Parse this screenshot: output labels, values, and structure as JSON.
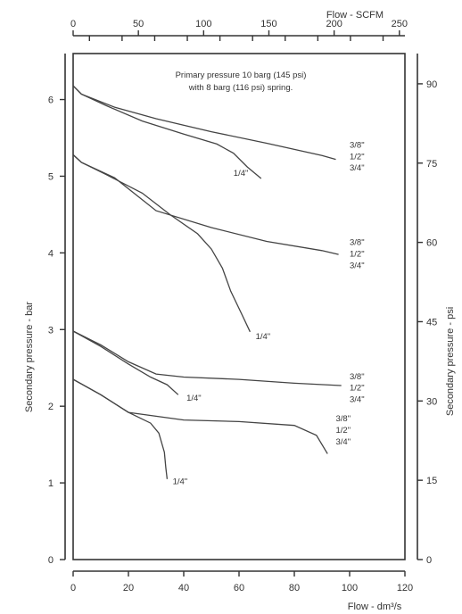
{
  "chart_data": {
    "type": "line",
    "title_lines": [
      "Primary pressure 10 barg (145 psi)",
      "with 8 barg (116 psi) spring."
    ],
    "xlabel": "Flow - dm³/s",
    "xlabel_top": "Flow - SCFM",
    "ylabel": "Secondary pressure - bar",
    "ylabel_right": "Secondary pressure - psi",
    "xlim": [
      0,
      120
    ],
    "ylim": [
      0,
      6.6
    ],
    "x_ticks": [
      0,
      20,
      40,
      60,
      80,
      100,
      120
    ],
    "y_ticks": [
      0,
      1,
      2,
      3,
      4,
      5,
      6
    ],
    "x_top_ticks": [
      0,
      50,
      100,
      150,
      200,
      250
    ],
    "x_top_minor_step": 12.5,
    "y_right_ticks": [
      0,
      15,
      30,
      45,
      60,
      75,
      90
    ],
    "grid": false,
    "series": [
      {
        "group": 1,
        "points": [
          [
            0,
            6.18
          ],
          [
            3,
            6.07
          ],
          [
            15,
            5.9
          ],
          [
            30,
            5.75
          ],
          [
            50,
            5.58
          ],
          [
            70,
            5.43
          ],
          [
            90,
            5.27
          ],
          [
            95,
            5.22
          ]
        ]
      },
      {
        "group": 1,
        "label": "1/4\"",
        "label_at": [
          58,
          5.05
        ],
        "points": [
          [
            0,
            6.18
          ],
          [
            3,
            6.07
          ],
          [
            12,
            5.92
          ],
          [
            25,
            5.72
          ],
          [
            40,
            5.55
          ],
          [
            52,
            5.42
          ],
          [
            58,
            5.3
          ],
          [
            63,
            5.12
          ],
          [
            68,
            4.97
          ]
        ]
      },
      {
        "group": 1,
        "label": "3/8\"",
        "label_at": [
          100,
          5.42
        ],
        "points": []
      },
      {
        "group": 1,
        "label": "1/2\"",
        "label_at": [
          100,
          5.27
        ],
        "points": []
      },
      {
        "group": 1,
        "label": "3/4\"",
        "label_at": [
          100,
          5.12
        ],
        "points": []
      },
      {
        "group": 2,
        "points": [
          [
            0,
            5.28
          ],
          [
            3,
            5.18
          ],
          [
            15,
            4.98
          ],
          [
            30,
            4.55
          ],
          [
            50,
            4.33
          ],
          [
            70,
            4.15
          ],
          [
            90,
            4.03
          ],
          [
            96,
            3.98
          ]
        ]
      },
      {
        "group": 2,
        "label": "1/4\"",
        "label_at": [
          66,
          2.92
        ],
        "points": [
          [
            0,
            5.28
          ],
          [
            3,
            5.18
          ],
          [
            12,
            5.02
          ],
          [
            25,
            4.78
          ],
          [
            35,
            4.5
          ],
          [
            45,
            4.25
          ],
          [
            50,
            4.05
          ],
          [
            54,
            3.8
          ],
          [
            57,
            3.5
          ],
          [
            61,
            3.2
          ],
          [
            64,
            2.97
          ]
        ]
      },
      {
        "group": 2,
        "label": "3/8\"",
        "label_at": [
          100,
          4.15
        ],
        "points": []
      },
      {
        "group": 2,
        "label": "1/2\"",
        "label_at": [
          100,
          4.0
        ],
        "points": []
      },
      {
        "group": 2,
        "label": "3/4\"",
        "label_at": [
          100,
          3.85
        ],
        "points": []
      },
      {
        "group": 3,
        "points": [
          [
            0,
            2.98
          ],
          [
            10,
            2.8
          ],
          [
            20,
            2.58
          ],
          [
            30,
            2.42
          ],
          [
            40,
            2.38
          ],
          [
            60,
            2.35
          ],
          [
            80,
            2.3
          ],
          [
            97,
            2.27
          ]
        ]
      },
      {
        "group": 3,
        "label": "1/4\"",
        "label_at": [
          41,
          2.12
        ],
        "points": [
          [
            0,
            2.98
          ],
          [
            10,
            2.78
          ],
          [
            20,
            2.55
          ],
          [
            28,
            2.38
          ],
          [
            34,
            2.28
          ],
          [
            38,
            2.15
          ]
        ]
      },
      {
        "group": 3,
        "label": "3/8\"",
        "label_at": [
          100,
          2.4
        ],
        "points": []
      },
      {
        "group": 3,
        "label": "1/2\"",
        "label_at": [
          100,
          2.25
        ],
        "points": []
      },
      {
        "group": 3,
        "label": "3/4\"",
        "label_at": [
          100,
          2.1
        ],
        "points": []
      },
      {
        "group": 4,
        "points": [
          [
            0,
            2.35
          ],
          [
            10,
            2.15
          ],
          [
            20,
            1.92
          ],
          [
            40,
            1.82
          ],
          [
            60,
            1.8
          ],
          [
            80,
            1.75
          ],
          [
            88,
            1.62
          ],
          [
            92,
            1.38
          ]
        ]
      },
      {
        "group": 4,
        "label": "1/4\"",
        "label_at": [
          36,
          1.03
        ],
        "points": [
          [
            0,
            2.35
          ],
          [
            10,
            2.15
          ],
          [
            20,
            1.92
          ],
          [
            28,
            1.78
          ],
          [
            31,
            1.65
          ],
          [
            33,
            1.4
          ],
          [
            33.5,
            1.2
          ],
          [
            34,
            1.05
          ]
        ]
      },
      {
        "group": 4,
        "label": "3/8\"",
        "label_at": [
          95,
          1.85
        ],
        "points": []
      },
      {
        "group": 4,
        "label": "1/2\"",
        "label_at": [
          95,
          1.7
        ],
        "points": []
      },
      {
        "group": 4,
        "label": "3/4\"",
        "label_at": [
          95,
          1.55
        ],
        "points": []
      }
    ]
  }
}
